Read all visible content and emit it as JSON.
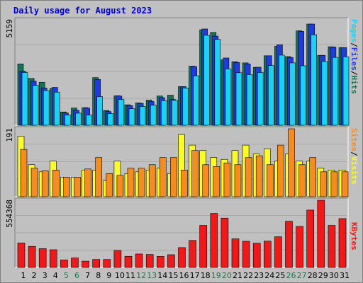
{
  "title": "Daily usage for August 2023",
  "colors": {
    "hits": "#157458",
    "files": "#1e3cdc",
    "pages": "#1ad2f6",
    "visits": "#fbfb26",
    "sites": "#f68c1e",
    "kbytes": "#f01818",
    "weekday_label": "#000000",
    "weekend_label": "#1b7a4f",
    "panel_bg": "#c0c0c0",
    "frame_bg": "#c0c0c0"
  },
  "legend": {
    "top": {
      "pages": "Pages",
      "files": "Files",
      "hits": "Hits",
      "sep": "/"
    },
    "mid": {
      "sites": "Sites",
      "visits": "Visits",
      "sep": "/"
    },
    "bottom": {
      "kbytes": "KBytes"
    }
  },
  "chart_data": [
    {
      "type": "bar",
      "name": "hits-files-pages",
      "ymax_label": "5159",
      "ylim": [
        0,
        5159
      ],
      "categories": [
        "1",
        "2",
        "3",
        "4",
        "5",
        "6",
        "7",
        "8",
        "9",
        "10",
        "11",
        "12",
        "13",
        "14",
        "15",
        "16",
        "17",
        "18",
        "19",
        "20",
        "21",
        "22",
        "23",
        "24",
        "25",
        "26",
        "27",
        "28",
        "29",
        "30",
        "31"
      ],
      "weekend": [
        5,
        6,
        12,
        13,
        19,
        20,
        26,
        27
      ],
      "series": [
        {
          "name": "Hits",
          "values": [
            3000,
            2290,
            2100,
            1800,
            650,
            840,
            860,
            2330,
            720,
            1440,
            1000,
            1090,
            1230,
            1430,
            1470,
            1890,
            2890,
            4670,
            4540,
            3200,
            3110,
            3050,
            2830,
            3400,
            3860,
            3360,
            4620,
            4950,
            3420,
            3840,
            3800
          ]
        },
        {
          "name": "Files",
          "values": [
            2650,
            2150,
            1820,
            1850,
            600,
            730,
            840,
            2240,
            670,
            1430,
            960,
            1070,
            1160,
            1350,
            1260,
            1890,
            2870,
            4710,
            4360,
            3290,
            3070,
            3000,
            2840,
            3400,
            3940,
            3310,
            4590,
            4950,
            3420,
            3830,
            3800
          ]
        },
        {
          "name": "Pages",
          "values": [
            2580,
            1950,
            1700,
            1620,
            500,
            590,
            500,
            1400,
            570,
            1260,
            810,
            920,
            980,
            1200,
            1220,
            1820,
            2420,
            4400,
            4200,
            2760,
            2570,
            2480,
            2580,
            2920,
            3430,
            3050,
            2910,
            4430,
            3120,
            3320,
            3350
          ]
        }
      ]
    },
    {
      "type": "bar",
      "name": "visits-sites",
      "ymax_label": "191",
      "ylim": [
        0,
        191
      ],
      "categories": [
        "1",
        "2",
        "3",
        "4",
        "5",
        "6",
        "7",
        "8",
        "9",
        "10",
        "11",
        "12",
        "13",
        "14",
        "15",
        "16",
        "17",
        "18",
        "19",
        "20",
        "21",
        "22",
        "23",
        "24",
        "25",
        "26",
        "27",
        "28",
        "29",
        "30",
        "31"
      ],
      "series": [
        {
          "name": "Visits",
          "values": [
            170,
            90,
            70,
            100,
            55,
            55,
            75,
            75,
            45,
            100,
            65,
            70,
            75,
            80,
            65,
            175,
            145,
            130,
            110,
            105,
            130,
            145,
            120,
            135,
            100,
            120,
            100,
            100,
            80,
            75,
            75
          ]
        },
        {
          "name": "Sites",
          "values": [
            133,
            80,
            73,
            75,
            55,
            55,
            78,
            110,
            65,
            60,
            80,
            80,
            90,
            110,
            110,
            75,
            130,
            90,
            85,
            95,
            90,
            110,
            115,
            90,
            145,
            191,
            90,
            110,
            70,
            70,
            70
          ]
        }
      ]
    },
    {
      "type": "bar",
      "name": "kbytes",
      "ymax_label": "554368",
      "ylim": [
        0,
        554368
      ],
      "categories": [
        "1",
        "2",
        "3",
        "4",
        "5",
        "6",
        "7",
        "8",
        "9",
        "10",
        "11",
        "12",
        "13",
        "14",
        "15",
        "16",
        "17",
        "18",
        "19",
        "20",
        "21",
        "22",
        "23",
        "24",
        "25",
        "26",
        "27",
        "28",
        "29",
        "30",
        "31"
      ],
      "series": [
        {
          "name": "KBytes",
          "values": [
            202000,
            174000,
            155000,
            146000,
            62000,
            78000,
            52000,
            66000,
            66000,
            140000,
            92000,
            111000,
            107000,
            91000,
            105000,
            164000,
            223000,
            347000,
            446000,
            407000,
            236000,
            216000,
            200000,
            217000,
            253000,
            381000,
            338000,
            473000,
            554368,
            347000,
            403000
          ]
        }
      ]
    }
  ]
}
